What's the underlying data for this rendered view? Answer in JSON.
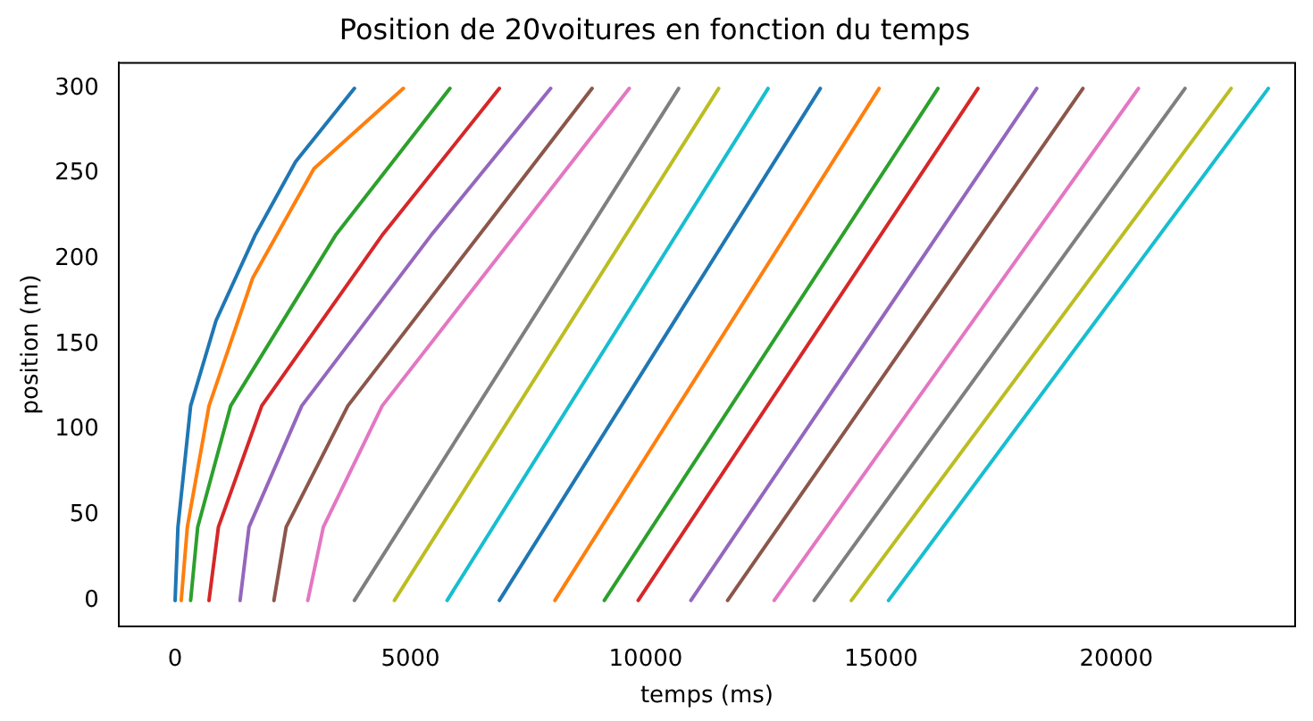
{
  "chart_data": {
    "type": "line",
    "title": "Position de 20voitures en fonction du temps",
    "xlabel": "temps (ms)",
    "ylabel": "position (m)",
    "xlim": [
      -1200,
      23800
    ],
    "ylim": [
      -15,
      315
    ],
    "xticks": [
      0,
      5000,
      10000,
      15000,
      20000
    ],
    "yticks": [
      0,
      50,
      100,
      150,
      200,
      250,
      300
    ],
    "grid": false,
    "legend": false,
    "marker": "none",
    "line_style": "solid",
    "series": [
      {
        "color": "#1f77b4",
        "x": [
          0,
          60,
          330,
          870,
          1700,
          2560,
          3810
        ],
        "values": [
          0,
          43,
          114,
          164,
          214,
          257,
          300
        ]
      },
      {
        "color": "#ff7f0e",
        "x": [
          130,
          260,
          720,
          1650,
          2950,
          4850
        ],
        "values": [
          0,
          43,
          114,
          189,
          253,
          300
        ]
      },
      {
        "color": "#2ca02c",
        "x": [
          330,
          480,
          1180,
          3410,
          5840
        ],
        "values": [
          0,
          43,
          114,
          214,
          300
        ]
      },
      {
        "color": "#d62728",
        "x": [
          720,
          920,
          1840,
          4400,
          6890
        ],
        "values": [
          0,
          43,
          114,
          214,
          300
        ]
      },
      {
        "color": "#9467bd",
        "x": [
          1380,
          1570,
          2690,
          5440,
          7980
        ],
        "values": [
          0,
          43,
          114,
          214,
          300
        ]
      },
      {
        "color": "#8c564b",
        "x": [
          2100,
          2360,
          3670,
          8860
        ],
        "values": [
          0,
          43,
          114,
          300
        ]
      },
      {
        "color": "#e377c2",
        "x": [
          2820,
          3150,
          4400,
          9650
        ],
        "values": [
          0,
          43,
          114,
          300
        ]
      },
      {
        "color": "#7f7f7f",
        "x": [
          3810,
          10700
        ],
        "values": [
          0,
          300
        ]
      },
      {
        "color": "#bcbd22",
        "x": [
          4660,
          11550
        ],
        "values": [
          0,
          300
        ]
      },
      {
        "color": "#17becf",
        "x": [
          5780,
          12600
        ],
        "values": [
          0,
          300
        ]
      },
      {
        "color": "#1f77b4",
        "x": [
          6890,
          13710
        ],
        "values": [
          0,
          300
        ]
      },
      {
        "color": "#ff7f0e",
        "x": [
          8070,
          14960
        ],
        "values": [
          0,
          300
        ]
      },
      {
        "color": "#2ca02c",
        "x": [
          9120,
          16210
        ],
        "values": [
          0,
          300
        ]
      },
      {
        "color": "#d62728",
        "x": [
          9840,
          17060
        ],
        "values": [
          0,
          300
        ]
      },
      {
        "color": "#9467bd",
        "x": [
          10960,
          18310
        ],
        "values": [
          0,
          300
        ]
      },
      {
        "color": "#8c564b",
        "x": [
          11740,
          19290
        ],
        "values": [
          0,
          300
        ]
      },
      {
        "color": "#e377c2",
        "x": [
          12730,
          20470
        ],
        "values": [
          0,
          300
        ]
      },
      {
        "color": "#7f7f7f",
        "x": [
          13580,
          21460
        ],
        "values": [
          0,
          300
        ]
      },
      {
        "color": "#bcbd22",
        "x": [
          14370,
          22440
        ],
        "values": [
          0,
          300
        ]
      },
      {
        "color": "#17becf",
        "x": [
          15160,
          23230
        ],
        "values": [
          0,
          300
        ]
      }
    ]
  }
}
